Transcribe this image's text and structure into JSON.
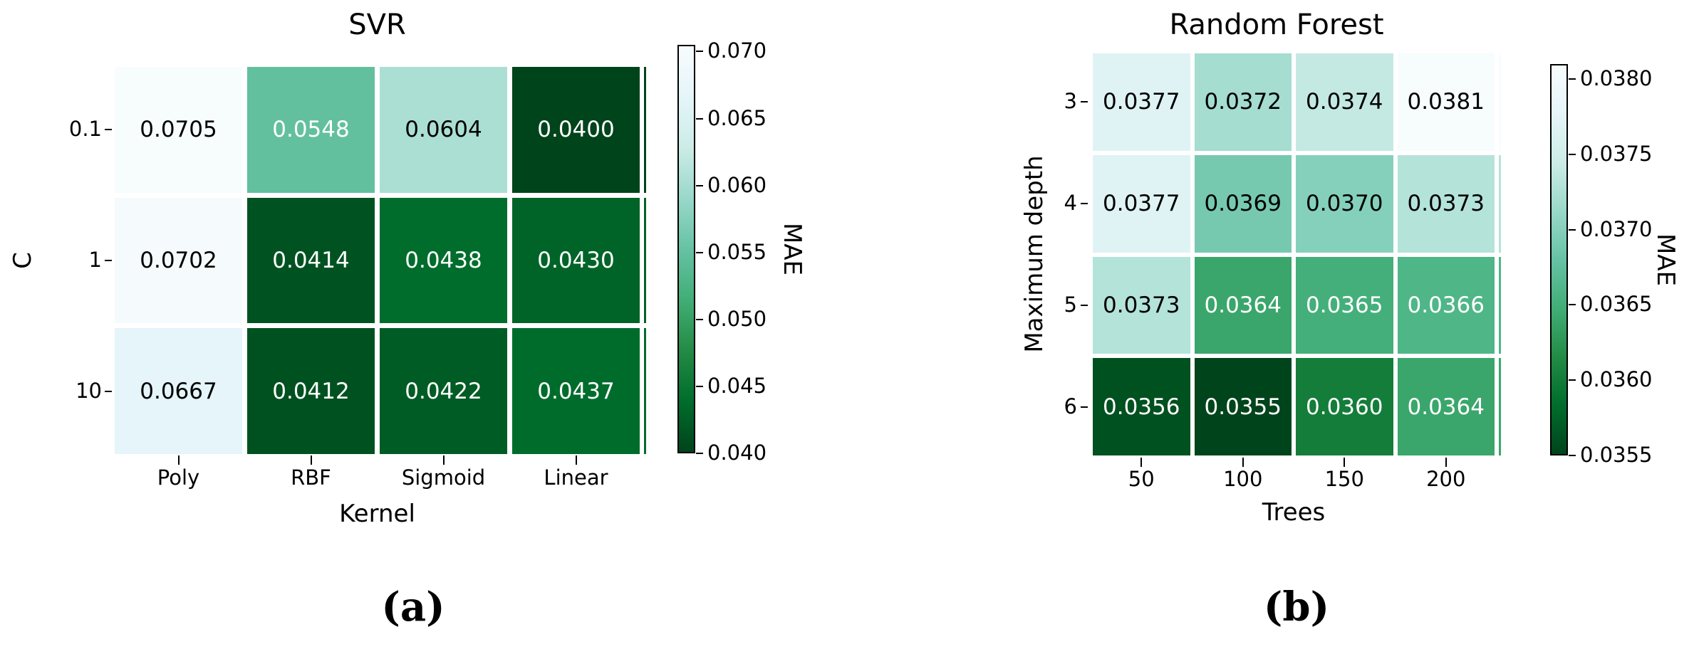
{
  "page": {
    "background": "#ffffff"
  },
  "colormap": {
    "description": "BuGn reversed (high MAE = light, low MAE = dark green)",
    "stops_top_to_bottom": [
      "#f7fcfd",
      "#e5f5f9",
      "#ccece6",
      "#99d8c9",
      "#66c2a4",
      "#41ae76",
      "#238b45",
      "#006d2c",
      "#00441b"
    ]
  },
  "panels": [
    {
      "id": "a",
      "title": "SVR",
      "caption": "(a)",
      "xlabel": "Kernel",
      "ylabel": "C",
      "x_ticks": [
        "Poly",
        "RBF",
        "Sigmoid",
        "Linear"
      ],
      "y_ticks": [
        "0.1",
        "1",
        "10"
      ],
      "colorbar": {
        "label": "MAE",
        "vmin": 0.04,
        "vmax": 0.0705,
        "ticks": [
          "0.070",
          "0.065",
          "0.060",
          "0.055",
          "0.050",
          "0.045",
          "0.040"
        ],
        "tick_values": [
          0.07,
          0.065,
          0.06,
          0.055,
          0.05,
          0.045,
          0.04
        ]
      },
      "rows": [
        [
          {
            "v": "0.0705",
            "bg": "#f7fcfd",
            "fg": "#000000"
          },
          {
            "v": "0.0548",
            "bg": "#62c09f",
            "fg": "#ffffff"
          },
          {
            "v": "0.0604",
            "bg": "#abdfd3",
            "fg": "#000000"
          },
          {
            "v": "0.0400",
            "bg": "#00441b",
            "fg": "#ffffff"
          }
        ],
        [
          {
            "v": "0.0702",
            "bg": "#f5fbfc",
            "fg": "#000000"
          },
          {
            "v": "0.0414",
            "bg": "#005321",
            "fg": "#ffffff"
          },
          {
            "v": "0.0438",
            "bg": "#006d2c",
            "fg": "#ffffff"
          },
          {
            "v": "0.0430",
            "bg": "#006428",
            "fg": "#ffffff"
          }
        ],
        [
          {
            "v": "0.0667",
            "bg": "#e5f5f9",
            "fg": "#000000"
          },
          {
            "v": "0.0412",
            "bg": "#005120",
            "fg": "#ffffff"
          },
          {
            "v": "0.0422",
            "bg": "#005c25",
            "fg": "#ffffff"
          },
          {
            "v": "0.0437",
            "bg": "#006c2c",
            "fg": "#ffffff"
          }
        ]
      ]
    },
    {
      "id": "b",
      "title": "Random Forest",
      "caption": "(b)",
      "xlabel": "Trees",
      "ylabel": "Maximum depth",
      "x_ticks": [
        "50",
        "100",
        "150",
        "200"
      ],
      "y_ticks": [
        "3",
        "4",
        "5",
        "6"
      ],
      "colorbar": {
        "label": "MAE",
        "vmin": 0.0355,
        "vmax": 0.0381,
        "ticks": [
          "0.0380",
          "0.0375",
          "0.0370",
          "0.0365",
          "0.0360",
          "0.0355"
        ],
        "tick_values": [
          0.038,
          0.0375,
          0.037,
          0.0365,
          0.036,
          0.0355
        ]
      },
      "rows": [
        [
          {
            "v": "0.0377",
            "bg": "#dff3f5",
            "fg": "#000000"
          },
          {
            "v": "0.0372",
            "bg": "#a5ddd0",
            "fg": "#000000"
          },
          {
            "v": "0.0374",
            "bg": "#c4e9e2",
            "fg": "#000000"
          },
          {
            "v": "0.0381",
            "bg": "#f7fcfd",
            "fg": "#000000"
          }
        ],
        [
          {
            "v": "0.0377",
            "bg": "#dff3f5",
            "fg": "#000000"
          },
          {
            "v": "0.0369",
            "bg": "#76c9af",
            "fg": "#000000"
          },
          {
            "v": "0.0370",
            "bg": "#85d0bb",
            "fg": "#000000"
          },
          {
            "v": "0.0373",
            "bg": "#b4e3d9",
            "fg": "#000000"
          }
        ],
        [
          {
            "v": "0.0373",
            "bg": "#b4e3d9",
            "fg": "#000000"
          },
          {
            "v": "0.0364",
            "bg": "#3aa66b",
            "fg": "#ffffff"
          },
          {
            "v": "0.0365",
            "bg": "#44af7a",
            "fg": "#ffffff"
          },
          {
            "v": "0.0366",
            "bg": "#4fb688",
            "fg": "#ffffff"
          }
        ],
        [
          {
            "v": "0.0356",
            "bg": "#005120",
            "fg": "#ffffff"
          },
          {
            "v": "0.0355",
            "bg": "#00441b",
            "fg": "#ffffff"
          },
          {
            "v": "0.0360",
            "bg": "#137d39",
            "fg": "#ffffff"
          },
          {
            "v": "0.0364",
            "bg": "#3aa66b",
            "fg": "#ffffff"
          }
        ]
      ]
    }
  ],
  "chart_data": [
    {
      "type": "heatmap",
      "title": "SVR",
      "xlabel": "Kernel",
      "ylabel": "C",
      "x": [
        "Poly",
        "RBF",
        "Sigmoid",
        "Linear"
      ],
      "y": [
        "0.1",
        "1",
        "10"
      ],
      "values": [
        [
          0.0705,
          0.0548,
          0.0604,
          0.04
        ],
        [
          0.0702,
          0.0414,
          0.0438,
          0.043
        ],
        [
          0.0667,
          0.0412,
          0.0422,
          0.0437
        ]
      ],
      "colorbar_label": "MAE",
      "colorbar_ticks": [
        0.07,
        0.065,
        0.06,
        0.055,
        0.05,
        0.045,
        0.04
      ],
      "colorbar_range": [
        0.04,
        0.0705
      ],
      "colormap": "BuGn reversed (dark green = low MAE)",
      "annotations": "each cell labeled with its MAE value",
      "caption": "(a)",
      "legend_position": "right colorbar"
    },
    {
      "type": "heatmap",
      "title": "Random Forest",
      "xlabel": "Trees",
      "ylabel": "Maximum depth",
      "x": [
        "50",
        "100",
        "150",
        "200"
      ],
      "y": [
        "3",
        "4",
        "5",
        "6"
      ],
      "values": [
        [
          0.0377,
          0.0372,
          0.0374,
          0.0381
        ],
        [
          0.0377,
          0.0369,
          0.037,
          0.0373
        ],
        [
          0.0373,
          0.0364,
          0.0365,
          0.0366
        ],
        [
          0.0356,
          0.0355,
          0.036,
          0.0364
        ]
      ],
      "colorbar_label": "MAE",
      "colorbar_ticks": [
        0.038,
        0.0375,
        0.037,
        0.0365,
        0.036,
        0.0355
      ],
      "colorbar_range": [
        0.0355,
        0.0381
      ],
      "colormap": "BuGn reversed (dark green = low MAE)",
      "annotations": "each cell labeled with its MAE value",
      "caption": "(b)",
      "legend_position": "right colorbar"
    }
  ]
}
